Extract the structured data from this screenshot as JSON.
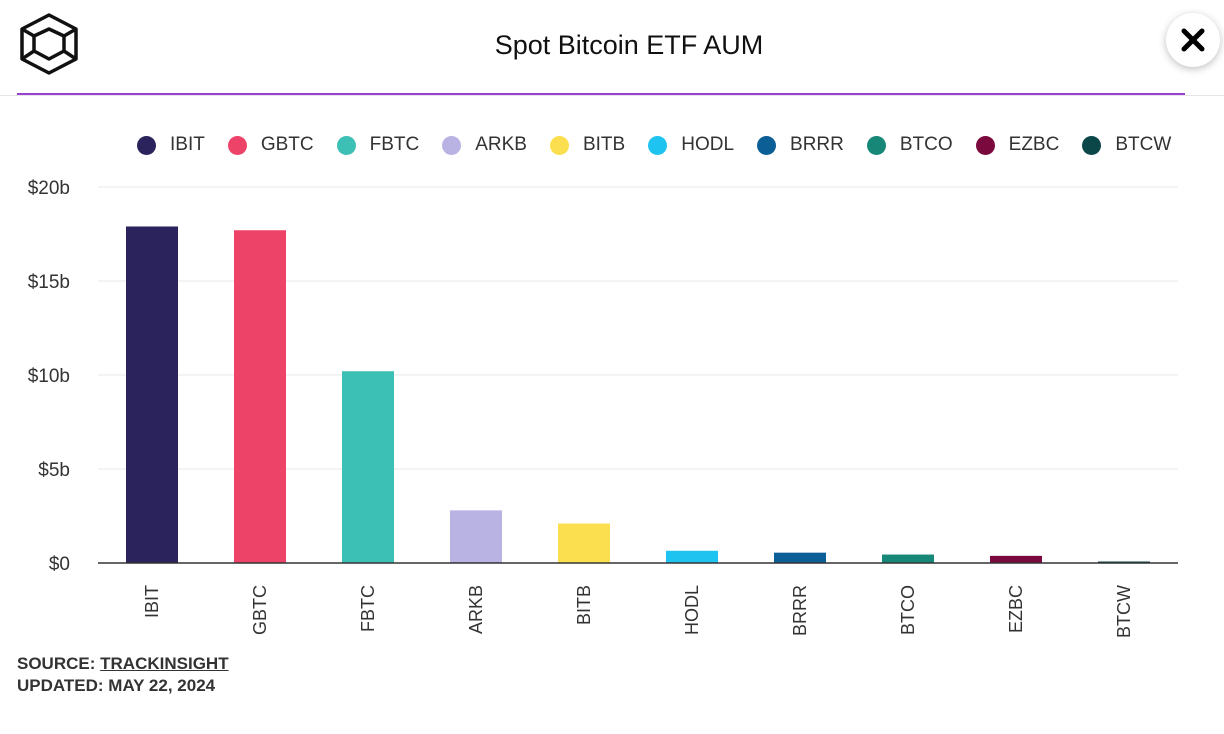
{
  "header": {
    "title": "Spot Bitcoin ETF AUM"
  },
  "footer": {
    "source_prefix": "SOURCE:",
    "source_link": "TRACKINSIGHT",
    "updated": "UPDATED: MAY 22, 2024"
  },
  "colors": {
    "accent_rule": "#9b3fd6"
  },
  "chart_data": {
    "type": "bar",
    "title": "Spot Bitcoin ETF AUM",
    "xlabel": "",
    "ylabel": "",
    "categories": [
      "IBIT",
      "GBTC",
      "FBTC",
      "ARKB",
      "BITB",
      "HODL",
      "BRRR",
      "BTCO",
      "EZBC",
      "BTCW"
    ],
    "values": [
      17.9,
      17.7,
      10.2,
      2.8,
      2.1,
      0.65,
      0.55,
      0.45,
      0.38,
      0.08
    ],
    "colors": [
      "#2b235c",
      "#ee4369",
      "#3cbfb4",
      "#b8b3e3",
      "#fbdf4f",
      "#1ec3f0",
      "#0c5e97",
      "#178777",
      "#7a0a3d",
      "#0b4649"
    ],
    "yticks": [
      0,
      5,
      10,
      15,
      20
    ],
    "ytick_labels": [
      "$0",
      "$5b",
      "$10b",
      "$15b",
      "$20b"
    ],
    "ylim": [
      0,
      20
    ],
    "grid": true,
    "legend_position": "top"
  }
}
